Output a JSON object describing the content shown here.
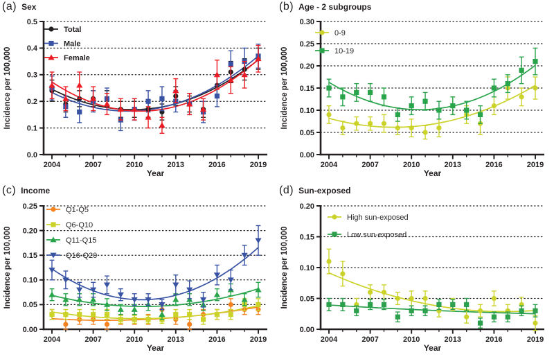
{
  "figure": {
    "background": "#ffffff",
    "axis_color": "#231f20",
    "grid_style": "dotted-horizontal-at-major-ticks"
  },
  "chart_data": [
    {
      "type": "scatter",
      "subtype": "points-with-error-bars-and-quadratic-trend",
      "panel_label": "(a)",
      "title": "Sex",
      "xlabel": "Year",
      "ylabel": "Incidence per 100,000",
      "x": [
        2004,
        2005,
        2006,
        2007,
        2008,
        2009,
        2010,
        2011,
        2012,
        2013,
        2014,
        2015,
        2016,
        2017,
        2018,
        2019
      ],
      "x_tick_labels": [
        "2004",
        "2007",
        "2010",
        "2013",
        "2016",
        "2019"
      ],
      "ylim": [
        0,
        0.5
      ],
      "y_ticks": [
        0,
        0.1,
        0.2,
        0.3,
        0.4,
        0.5
      ],
      "y_tick_labels": [
        "0.0",
        "0.1",
        "0.2",
        "0.3",
        "0.4",
        "0.5"
      ],
      "grid": true,
      "legend": {
        "position": "top-left-inside"
      },
      "series": [
        {
          "name": "Total",
          "color": "#231f20",
          "marker": "circle",
          "values": [
            0.24,
            0.19,
            0.21,
            0.21,
            0.21,
            0.17,
            0.17,
            0.17,
            0.16,
            0.22,
            0.19,
            0.17,
            0.26,
            0.31,
            0.32,
            0.36
          ],
          "err": [
            0.04,
            0.03,
            0.03,
            0.03,
            0.03,
            0.03,
            0.03,
            0.03,
            0.03,
            0.035,
            0.03,
            0.03,
            0.04,
            0.04,
            0.04,
            0.04
          ]
        },
        {
          "name": "Male",
          "color": "#3953a4",
          "marker": "square",
          "values": [
            0.25,
            0.18,
            0.16,
            0.2,
            0.21,
            0.13,
            0.17,
            0.2,
            0.21,
            0.2,
            0.19,
            0.16,
            0.22,
            0.34,
            0.35,
            0.37
          ],
          "err": [
            0.045,
            0.04,
            0.04,
            0.04,
            0.04,
            0.04,
            0.04,
            0.04,
            0.045,
            0.04,
            0.04,
            0.04,
            0.04,
            0.05,
            0.05,
            0.045
          ]
        },
        {
          "name": "Female",
          "color": "#ed1c24",
          "marker": "triangle-up",
          "values": [
            0.26,
            0.21,
            0.26,
            0.21,
            0.19,
            0.17,
            0.17,
            0.14,
            0.11,
            0.24,
            0.19,
            0.17,
            0.3,
            0.28,
            0.3,
            0.36
          ],
          "err": [
            0.05,
            0.045,
            0.05,
            0.045,
            0.04,
            0.04,
            0.04,
            0.04,
            0.03,
            0.045,
            0.04,
            0.04,
            0.055,
            0.05,
            0.05,
            0.05
          ]
        }
      ]
    },
    {
      "type": "scatter",
      "subtype": "points-with-error-bars-and-quadratic-trend",
      "panel_label": "(b)",
      "title": "Age - 2 subgroups",
      "xlabel": "Year",
      "ylabel": "Incidence per 100,000",
      "x": [
        2004,
        2005,
        2006,
        2007,
        2008,
        2009,
        2010,
        2011,
        2012,
        2013,
        2014,
        2015,
        2016,
        2017,
        2018,
        2019
      ],
      "x_tick_labels": [
        "2004",
        "2007",
        "2010",
        "2013",
        "2016",
        "2019"
      ],
      "ylim": [
        0,
        0.3
      ],
      "y_ticks": [
        0,
        0.05,
        0.1,
        0.15,
        0.2,
        0.25,
        0.3
      ],
      "y_tick_labels": [
        "0.00",
        "0.05",
        "0.10",
        "0.15",
        "0.20",
        "0.25",
        "0.30"
      ],
      "grid": true,
      "legend": {
        "position": "top-left-inside"
      },
      "series": [
        {
          "name": "0-9",
          "color": "#cbd32b",
          "marker": "circle",
          "values": [
            0.09,
            0.06,
            0.07,
            0.07,
            0.07,
            0.06,
            0.06,
            0.05,
            0.06,
            0.11,
            0.09,
            0.07,
            0.11,
            0.15,
            0.13,
            0.15
          ],
          "err": [
            0.02,
            0.015,
            0.015,
            0.015,
            0.02,
            0.015,
            0.02,
            0.015,
            0.02,
            0.02,
            0.02,
            0.025,
            0.02,
            0.025,
            0.02,
            0.025
          ]
        },
        {
          "name": "10-19",
          "color": "#28a44b",
          "marker": "square",
          "values": [
            0.15,
            0.13,
            0.14,
            0.14,
            0.13,
            0.09,
            0.11,
            0.12,
            0.1,
            0.11,
            0.1,
            0.09,
            0.15,
            0.16,
            0.19,
            0.21
          ],
          "err": [
            0.02,
            0.02,
            0.02,
            0.02,
            0.02,
            0.015,
            0.02,
            0.02,
            0.02,
            0.02,
            0.02,
            0.02,
            0.02,
            0.02,
            0.03,
            0.03
          ]
        }
      ]
    },
    {
      "type": "scatter",
      "subtype": "points-with-error-bars-and-quadratic-trend",
      "panel_label": "(c)",
      "title": "Income",
      "xlabel": "Year",
      "ylabel": "Incidence per 100,000",
      "x": [
        2004,
        2005,
        2006,
        2007,
        2008,
        2009,
        2010,
        2011,
        2012,
        2013,
        2014,
        2015,
        2016,
        2017,
        2018,
        2019
      ],
      "x_tick_labels": [
        "2004",
        "2007",
        "2010",
        "2013",
        "2016",
        "2019"
      ],
      "ylim": [
        0,
        0.25
      ],
      "y_ticks": [
        0,
        0.05,
        0.1,
        0.15,
        0.2,
        0.25
      ],
      "y_tick_labels": [
        "0.00",
        "0.05",
        "0.10",
        "0.15",
        "0.20",
        "0.25"
      ],
      "grid": true,
      "legend": {
        "position": "top-left-inside"
      },
      "series": [
        {
          "name": "Q1-Q5",
          "color": "#f58220",
          "marker": "circle",
          "values": [
            0.03,
            0.01,
            0.02,
            0.02,
            0.01,
            0.02,
            0.02,
            0.02,
            0.04,
            0.02,
            0.01,
            0.03,
            0.03,
            0.05,
            0.04,
            0.04
          ],
          "err": [
            0.01,
            0.01,
            0.01,
            0.01,
            0.01,
            0.01,
            0.01,
            0.01,
            0.012,
            0.01,
            0.01,
            0.01,
            0.01,
            0.012,
            0.01,
            0.01
          ]
        },
        {
          "name": "Q6-Q10",
          "color": "#cbd32b",
          "marker": "square",
          "values": [
            0.03,
            0.03,
            0.03,
            0.03,
            0.03,
            0.02,
            0.02,
            0.02,
            0.02,
            0.03,
            0.03,
            0.02,
            0.03,
            0.03,
            0.05,
            0.05
          ],
          "err": [
            0.01,
            0.01,
            0.01,
            0.01,
            0.01,
            0.008,
            0.008,
            0.008,
            0.008,
            0.01,
            0.01,
            0.01,
            0.01,
            0.01,
            0.012,
            0.012
          ]
        },
        {
          "name": "Q11-Q15",
          "color": "#28a44b",
          "marker": "triangle-up",
          "values": [
            0.07,
            0.06,
            0.06,
            0.06,
            0.05,
            0.04,
            0.04,
            0.05,
            0.03,
            0.06,
            0.06,
            0.05,
            0.07,
            0.08,
            0.06,
            0.08
          ],
          "err": [
            0.012,
            0.012,
            0.012,
            0.012,
            0.012,
            0.01,
            0.01,
            0.012,
            0.01,
            0.012,
            0.012,
            0.012,
            0.012,
            0.012,
            0.012,
            0.015
          ]
        },
        {
          "name": "Q16-Q20",
          "color": "#3953a4",
          "marker": "triangle-down",
          "values": [
            0.12,
            0.1,
            0.08,
            0.08,
            0.09,
            0.07,
            0.06,
            0.06,
            0.05,
            0.09,
            0.08,
            0.06,
            0.11,
            0.1,
            0.15,
            0.18
          ],
          "err": [
            0.02,
            0.018,
            0.015,
            0.015,
            0.018,
            0.012,
            0.012,
            0.012,
            0.01,
            0.02,
            0.018,
            0.015,
            0.02,
            0.02,
            0.02,
            0.03
          ]
        }
      ]
    },
    {
      "type": "scatter",
      "subtype": "points-with-error-bars-and-quadratic-trend",
      "panel_label": "(d)",
      "title": "Sun-exposed",
      "xlabel": "Year",
      "ylabel": "Incidence per 100,000",
      "x": [
        2004,
        2005,
        2006,
        2007,
        2008,
        2009,
        2010,
        2011,
        2012,
        2013,
        2014,
        2015,
        2016,
        2017,
        2018,
        2019
      ],
      "x_tick_labels": [
        "2004",
        "2007",
        "2010",
        "2013",
        "2016",
        "2019"
      ],
      "ylim": [
        0,
        0.2
      ],
      "y_ticks": [
        0,
        0.05,
        0.1,
        0.15,
        0.2
      ],
      "y_tick_labels": [
        "0.00",
        "0.05",
        "0.10",
        "0.15",
        "0.20"
      ],
      "grid": true,
      "legend": {
        "position": "top-left-inside"
      },
      "series": [
        {
          "name": "High sun-exposed",
          "color": "#cbd32b",
          "marker": "circle",
          "values": [
            0.11,
            0.09,
            0.04,
            0.06,
            0.06,
            0.05,
            0.05,
            0.05,
            0.03,
            0.04,
            0.02,
            0.03,
            0.05,
            0.03,
            0.04,
            0.01
          ],
          "err": [
            0.02,
            0.02,
            0.01,
            0.012,
            0.012,
            0.01,
            0.012,
            0.012,
            0.01,
            0.01,
            0.01,
            0.01,
            0.012,
            0.01,
            0.012,
            0.012
          ]
        },
        {
          "name": "Low sun-exposed",
          "color": "#2ca04c",
          "marker": "square",
          "values": [
            0.04,
            0.04,
            0.03,
            0.04,
            0.04,
            0.02,
            0.03,
            0.03,
            0.04,
            0.04,
            0.04,
            0.01,
            0.02,
            0.02,
            0.03,
            0.03
          ],
          "err": [
            0.01,
            0.01,
            0.008,
            0.008,
            0.008,
            0.008,
            0.008,
            0.008,
            0.008,
            0.008,
            0.01,
            0.008,
            0.008,
            0.008,
            0.008,
            0.01
          ]
        }
      ]
    }
  ]
}
